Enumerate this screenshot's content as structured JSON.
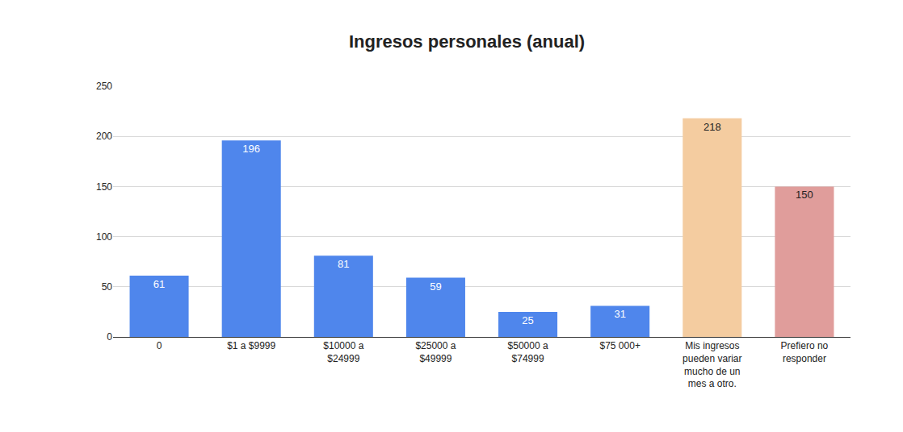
{
  "chart_data": {
    "type": "bar",
    "title": "Ingresos personales (anual)",
    "categories": [
      "0",
      "$1 a $9999",
      "$10000 a $24999",
      "$25000 a $49999",
      "$50000 a $74999",
      "$75 000+",
      "Mis ingresos pueden variar mucho de un mes a otro.",
      "Prefiero no responder"
    ],
    "values": [
      61,
      196,
      81,
      59,
      25,
      31,
      218,
      150
    ],
    "colors": [
      "#4f86ec",
      "#4f86ec",
      "#4f86ec",
      "#4f86ec",
      "#4f86ec",
      "#4f86ec",
      "#f4cca0",
      "#e09d9b"
    ],
    "ylim": [
      0,
      250
    ],
    "yticks": [
      0,
      50,
      100,
      150,
      200,
      250
    ],
    "grid": true,
    "data_labels": true
  }
}
